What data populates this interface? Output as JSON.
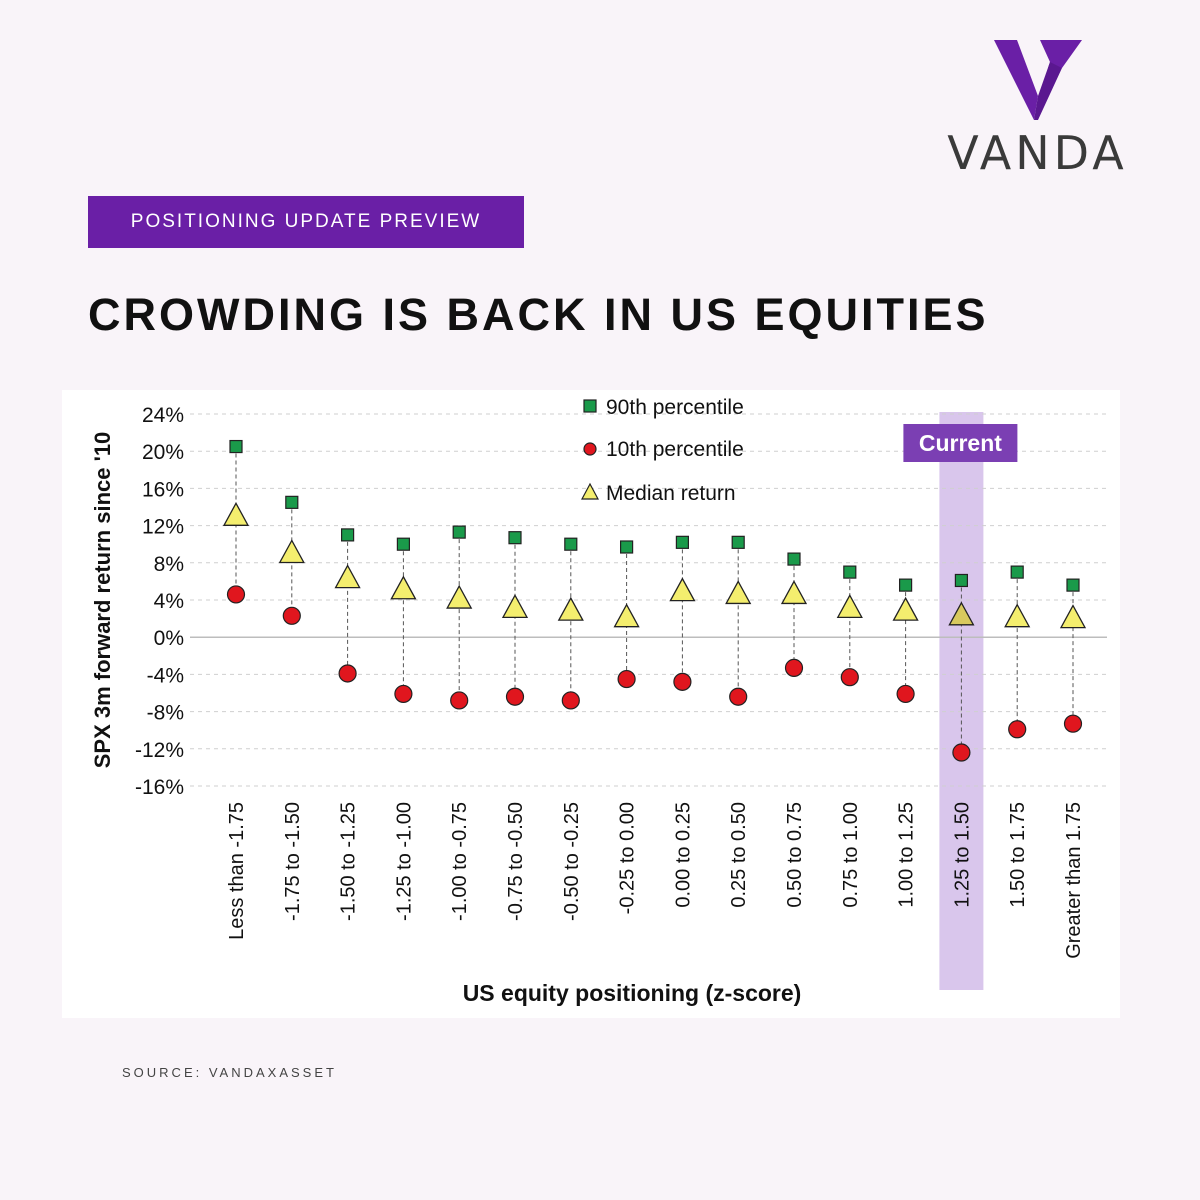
{
  "brand": {
    "name": "VANDA",
    "color": "#6a1fa6"
  },
  "tag": "POSITIONING UPDATE PREVIEW",
  "headline": "CROWDING IS BACK IN US EQUITIES",
  "source": "SOURCE: VANDAXASSET",
  "chart_data": {
    "type": "scatter",
    "xlabel": "US equity positioning (z-score)",
    "ylabel": "SPX 3m forward return since '10",
    "ylim": [
      -16,
      24
    ],
    "yticks": [
      24,
      20,
      16,
      12,
      8,
      4,
      0,
      -4,
      -8,
      -12,
      -16
    ],
    "ytick_labels": [
      "24%",
      "20%",
      "16%",
      "12%",
      "8%",
      "4%",
      "0%",
      "-4%",
      "-8%",
      "-12%",
      "-16%"
    ],
    "grid": true,
    "legend_position": "top-center",
    "categories": [
      "Less than -1.75",
      "-1.75 to -1.50",
      "-1.50 to -1.25",
      "-1.25 to -1.00",
      "-1.00 to -0.75",
      "-0.75 to -0.50",
      "-0.50 to -0.25",
      "-0.25 to 0.00",
      "0.00 to 0.25",
      "0.25 to 0.50",
      "0.50 to 0.75",
      "0.75 to 1.00",
      "1.00 to 1.25",
      "1.25 to 1.50",
      "1.50 to 1.75",
      "Greater than 1.75"
    ],
    "series": [
      {
        "name": "90th percentile",
        "marker": "square",
        "color": "#1a9a4a",
        "values": [
          20.5,
          14.5,
          11.0,
          10.0,
          11.3,
          10.7,
          10.0,
          9.7,
          10.2,
          10.2,
          8.4,
          7.0,
          5.6,
          6.1,
          7.0,
          5.6
        ]
      },
      {
        "name": "10th percentile",
        "marker": "circle",
        "color": "#e0161e",
        "values": [
          4.6,
          2.3,
          -3.9,
          -6.1,
          -6.8,
          -6.4,
          -6.8,
          -4.5,
          -4.8,
          -6.4,
          -3.3,
          -4.3,
          -6.1,
          -12.4,
          -9.9,
          -9.3
        ]
      },
      {
        "name": "Median return",
        "marker": "triangle",
        "color": "#f4ee6e",
        "values": [
          13.0,
          9.0,
          6.3,
          5.1,
          4.1,
          3.1,
          2.8,
          2.1,
          4.9,
          4.6,
          4.6,
          3.1,
          2.8,
          2.3,
          2.1,
          2.0
        ]
      }
    ],
    "highlight": {
      "category_index": 13,
      "label": "Current",
      "color": "#7b3fb3"
    }
  }
}
